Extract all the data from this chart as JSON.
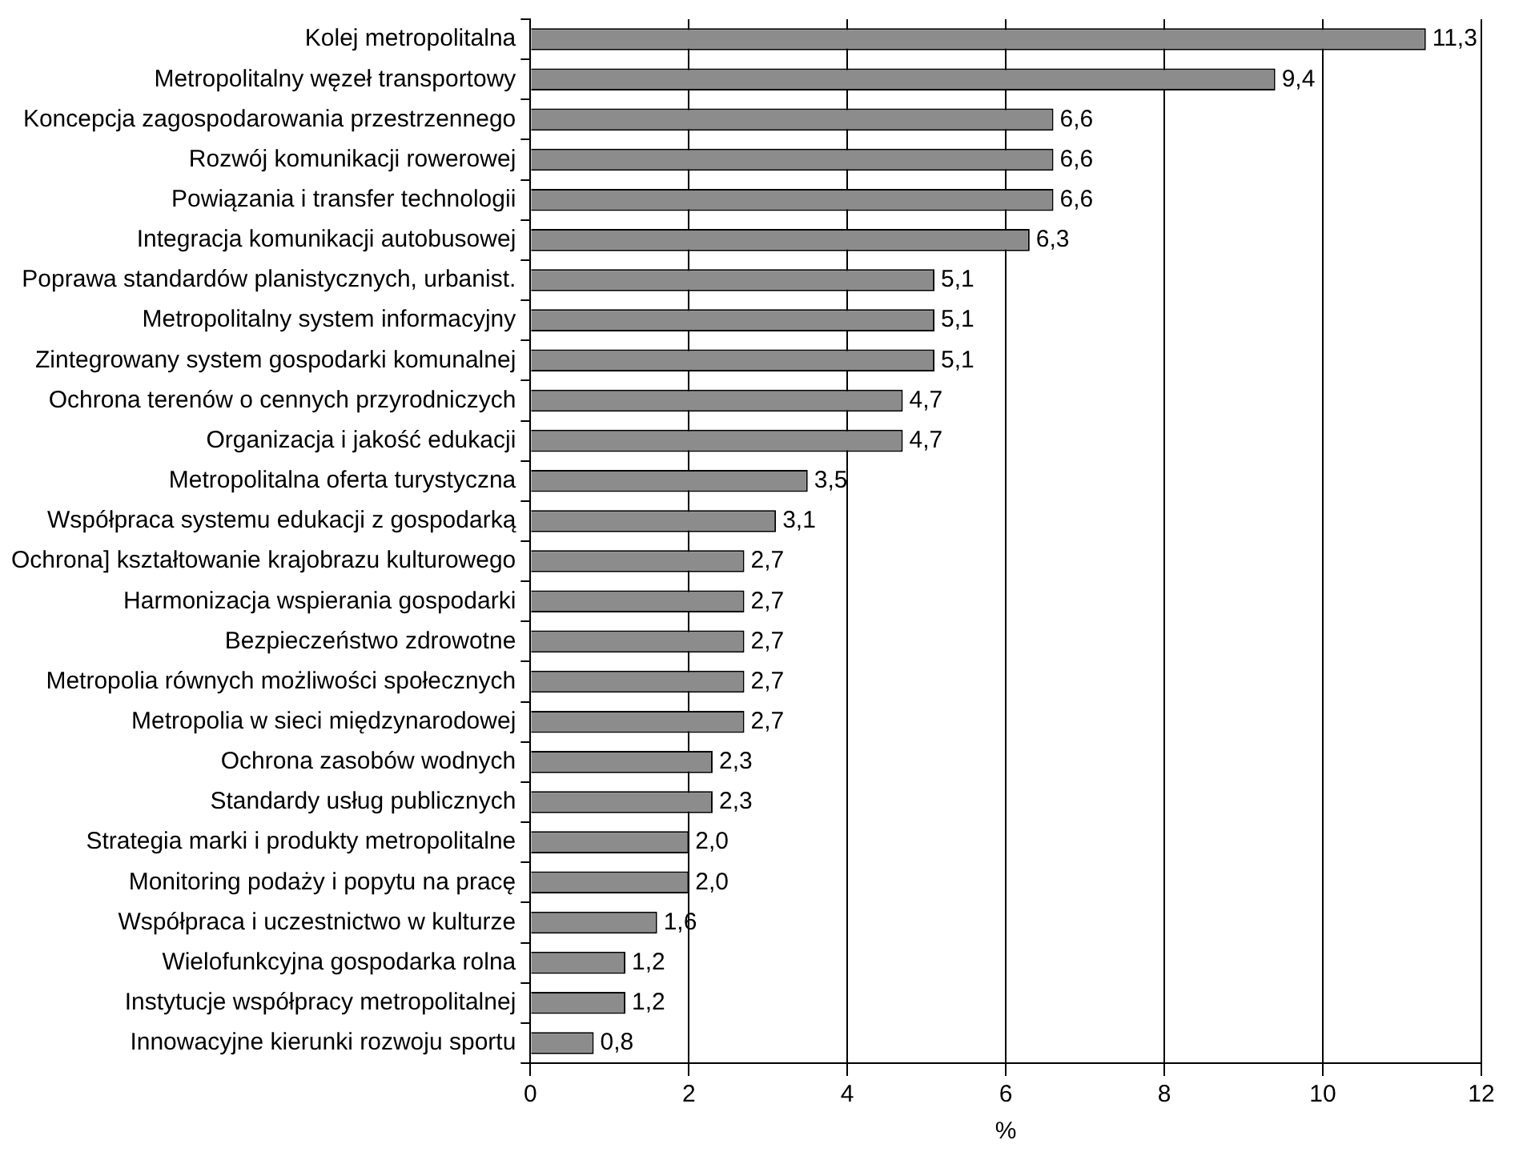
{
  "chart_data": {
    "type": "bar",
    "orientation": "horizontal",
    "xlabel": "%",
    "categories": [
      "Kolej metropolitalna",
      "Metropolitalny węzeł transportowy",
      "Koncepcja zagospodarowania przestrzennego",
      "Rozwój komunikacji rowerowej",
      "Powiązania i transfer technologii",
      "Integracja komunikacji autobusowej",
      "Poprawa standardów planistycznych, urbanist.",
      "Metropolitalny system informacyjny",
      "Zintegrowany system gospodarki komunalnej",
      "Ochrona terenów o cennych przyrodniczych",
      "Organizacja i jakość edukacji",
      "Metropolitalna oferta turystyczna",
      "Współpraca systemu edukacji z gospodarką",
      "Ochrona] kształtowanie krajobrazu kulturowego",
      "Harmonizacja wspierania gospodarki",
      "Bezpieczeństwo zdrowotne",
      "Metropolia równych możliwości społecznych",
      "Metropolia w sieci międzynarodowej",
      "Ochrona zasobów wodnych",
      "Standardy usług publicznych",
      "Strategia marki i produkty metropolitalne",
      "Monitoring podaży i popytu na pracę",
      "Współpraca i uczestnictwo w kulturze",
      "Wielofunkcyjna gospodarka rolna",
      "Instytucje współpracy metropolitalnej",
      "Innowacyjne kierunki rozwoju sportu"
    ],
    "values": [
      11.3,
      9.4,
      6.6,
      6.6,
      6.6,
      6.3,
      5.1,
      5.1,
      5.1,
      4.7,
      4.7,
      3.5,
      3.1,
      2.7,
      2.7,
      2.7,
      2.7,
      2.7,
      2.3,
      2.3,
      2.0,
      2.0,
      1.6,
      1.2,
      1.2,
      0.8
    ],
    "value_labels": [
      "11,3",
      "9,4",
      "6,6",
      "6,6",
      "6,6",
      "6,3",
      "5,1",
      "5,1",
      "5,1",
      "4,7",
      "4,7",
      "3,5",
      "3,1",
      "2,7",
      "2,7",
      "2,7",
      "2,7",
      "2,7",
      "2,3",
      "2,3",
      "2,0",
      "2,0",
      "1,6",
      "1,2",
      "1,2",
      "0,8"
    ],
    "color": "#8c8c8c",
    "xlim": [
      0,
      12
    ],
    "xticks": [
      0,
      2,
      4,
      6,
      8,
      10,
      12
    ],
    "grid": "x"
  }
}
